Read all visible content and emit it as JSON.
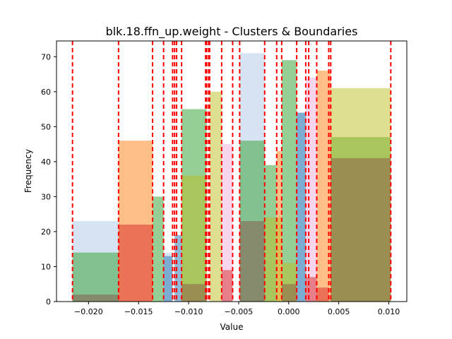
{
  "chart_data": {
    "type": "bar",
    "title": "blk.18.ffn_up.weight - Clusters & Boundaries",
    "xlabel": "Value",
    "ylabel": "Frequency",
    "xlim": [
      -0.0232,
      0.0118
    ],
    "ylim": [
      0,
      74.5
    ],
    "x_ticks": [
      -0.02,
      -0.015,
      -0.01,
      -0.005,
      0.0,
      0.005,
      0.01
    ],
    "x_tick_labels": [
      "−0.020",
      "−0.015",
      "−0.010",
      "−0.005",
      "0.000",
      "0.005",
      "0.010"
    ],
    "y_ticks": [
      0,
      10,
      20,
      30,
      40,
      50,
      60,
      70
    ],
    "y_tick_labels": [
      "0",
      "10",
      "20",
      "30",
      "40",
      "50",
      "60",
      "70"
    ],
    "grid": false,
    "boundary_color": "#ff0000",
    "boundaries": [
      -0.0216,
      -0.017,
      -0.0136,
      -0.0125,
      -0.0116,
      -0.0114,
      -0.0112,
      -0.0107,
      -0.0083,
      -0.0082,
      -0.008,
      -0.0079,
      -0.0067,
      -0.0056,
      -0.0049,
      -0.0024,
      -0.0012,
      -0.0007,
      0.0008,
      0.0017,
      0.002,
      0.0028,
      0.004,
      0.0042,
      0.0102
    ],
    "series": [
      {
        "color": "#aec7e8",
        "opacity": 0.5,
        "bins": [
          {
            "x0": -0.0216,
            "x1": -0.017,
            "y": 23
          },
          {
            "x0": -0.0125,
            "x1": -0.0116,
            "y": 14
          },
          {
            "x0": -0.0049,
            "x1": -0.0024,
            "y": 71
          },
          {
            "x0": 0.0008,
            "x1": 0.0017,
            "y": 54
          }
        ]
      },
      {
        "color": "#1f77b4",
        "opacity": 0.5,
        "bins": [
          {
            "x0": -0.0125,
            "x1": -0.0116,
            "y": 13
          },
          {
            "x0": -0.0114,
            "x1": -0.0107,
            "y": 19
          },
          {
            "x0": 0.0008,
            "x1": 0.0017,
            "y": 54
          }
        ]
      },
      {
        "color": "#ff7f0e",
        "opacity": 0.5,
        "bins": [
          {
            "x0": -0.017,
            "x1": -0.0136,
            "y": 46
          },
          {
            "x0": -0.0012,
            "x1": -0.0007,
            "y": 43
          },
          {
            "x0": 0.0028,
            "x1": 0.0042,
            "y": 66
          }
        ]
      },
      {
        "color": "#2ca02c",
        "opacity": 0.5,
        "bins": [
          {
            "x0": -0.0216,
            "x1": -0.017,
            "y": 14
          },
          {
            "x0": -0.0136,
            "x1": -0.0125,
            "y": 30
          },
          {
            "x0": -0.0107,
            "x1": -0.0082,
            "y": 55
          },
          {
            "x0": -0.0049,
            "x1": -0.0024,
            "y": 46
          },
          {
            "x0": -0.0024,
            "x1": -0.0012,
            "y": 39
          },
          {
            "x0": -0.0007,
            "x1": 0.0008,
            "y": 69
          },
          {
            "x0": 0.0042,
            "x1": 0.0102,
            "y": 47
          }
        ]
      },
      {
        "color": "#bcbd22",
        "opacity": 0.5,
        "bins": [
          {
            "x0": -0.0107,
            "x1": -0.0082,
            "y": 36
          },
          {
            "x0": -0.0079,
            "x1": -0.0067,
            "y": 60
          },
          {
            "x0": -0.0024,
            "x1": -0.0007,
            "y": 24
          },
          {
            "x0": -0.0007,
            "x1": 0.0008,
            "y": 11
          },
          {
            "x0": 0.0042,
            "x1": 0.0102,
            "y": 61
          }
        ]
      },
      {
        "color": "#8c564b",
        "opacity": 0.5,
        "bins": [
          {
            "x0": -0.0216,
            "x1": -0.017,
            "y": 2
          },
          {
            "x0": -0.0107,
            "x1": -0.0082,
            "y": 5
          },
          {
            "x0": -0.0049,
            "x1": -0.0024,
            "y": 23
          },
          {
            "x0": -0.0007,
            "x1": 0.0008,
            "y": 5
          },
          {
            "x0": 0.0042,
            "x1": 0.0102,
            "y": 41
          }
        ]
      },
      {
        "color": "#e377c2",
        "opacity": 0.3,
        "bins": [
          {
            "x0": -0.0067,
            "x1": -0.0056,
            "y": 45
          },
          {
            "x0": 0.0017,
            "x1": 0.0028,
            "y": 64
          }
        ]
      },
      {
        "color": "#d62728",
        "opacity": 0.5,
        "bins": [
          {
            "x0": -0.017,
            "x1": -0.0136,
            "y": 22
          },
          {
            "x0": -0.0067,
            "x1": -0.0056,
            "y": 9
          },
          {
            "x0": 0.0017,
            "x1": 0.0028,
            "y": 7
          },
          {
            "x0": 0.0028,
            "x1": 0.004,
            "y": 4
          }
        ]
      }
    ]
  }
}
